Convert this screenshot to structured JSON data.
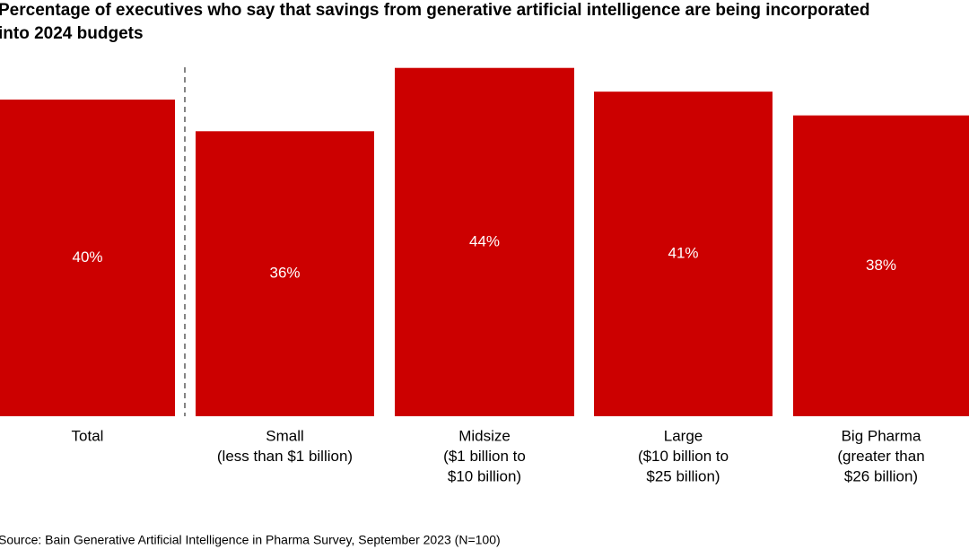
{
  "chart_data": {
    "type": "bar",
    "title": [
      "Percentage of executives who say that savings from generative artificial intelligence are being incorporated",
      "into 2024 budgets"
    ],
    "categories": [
      [
        "Total"
      ],
      [
        "Small",
        "(less than $1 billion)"
      ],
      [
        "Midsize",
        "($1 billion to",
        "$10 billion)"
      ],
      [
        "Large",
        "($10 billion to",
        "$25 billion)"
      ],
      [
        "Big Pharma",
        "(greater than",
        "$26 billion)"
      ]
    ],
    "values": [
      40,
      36,
      44,
      41,
      38
    ],
    "value_labels": [
      "40%",
      "36%",
      "44%",
      "41%",
      "38%"
    ],
    "color": "#cc0000",
    "source": "Source: Bain Generative Artificial Intelligence in Pharma Survey, September 2023 (N=100)"
  }
}
